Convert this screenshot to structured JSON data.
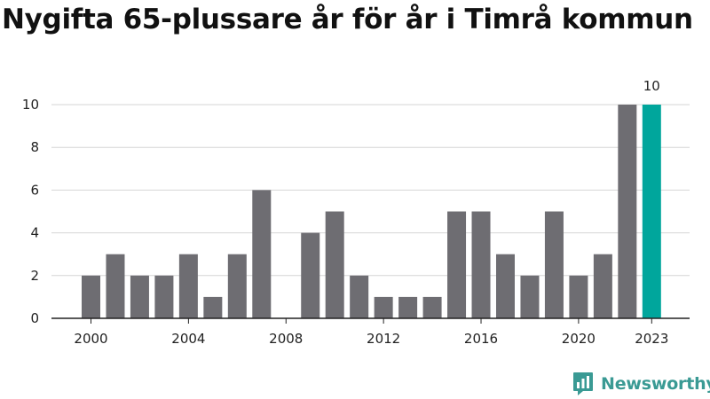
{
  "chart_data": {
    "type": "bar",
    "title": "Nygifta 65-plussare år för år i Timrå kommun",
    "xlabel": "",
    "ylabel": "",
    "categories": [
      "2000",
      "2001",
      "2002",
      "2003",
      "2004",
      "2005",
      "2006",
      "2007",
      "2008",
      "2009",
      "2010",
      "2011",
      "2012",
      "2013",
      "2014",
      "2015",
      "2016",
      "2017",
      "2018",
      "2019",
      "2020",
      "2021",
      "2022",
      "2023"
    ],
    "values": [
      2,
      3,
      2,
      2,
      3,
      1,
      3,
      6,
      0,
      4,
      5,
      2,
      1,
      1,
      1,
      5,
      5,
      3,
      2,
      5,
      2,
      3,
      10,
      10
    ],
    "ylim": [
      0,
      10
    ],
    "yticks": [
      0,
      2,
      4,
      6,
      8,
      10
    ],
    "xticks": [
      "2000",
      "2004",
      "2008",
      "2012",
      "2016",
      "2020",
      "2023"
    ],
    "highlight": {
      "category": "2023",
      "label": "10",
      "color": "#00a69c"
    },
    "bar_color": "#6e6d72",
    "grid": true
  },
  "brand": {
    "name": "Newsworthy",
    "icon": "newsworthy-logo-icon",
    "color": "#3a9a94"
  }
}
